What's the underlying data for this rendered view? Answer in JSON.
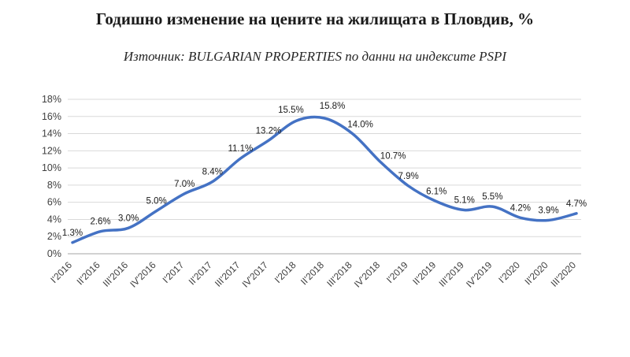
{
  "chart_data": {
    "type": "line",
    "title": "Годишно изменение на цените на жилищата в Пловдив, %",
    "subtitle": "Източник: BULGARIAN PROPERTIES по данни на индексите PSPI",
    "categories": [
      "I'2016",
      "II'2016",
      "III'2016",
      "IV'2016",
      "I'2017",
      "II'2017",
      "III'2017",
      "IV'2017",
      "I'2018",
      "II'2018",
      "III'2018",
      "IV'2018",
      "I'2019",
      "II'2019",
      "III'2019",
      "IV'2019",
      "I'2020",
      "II'2020",
      "III'2020"
    ],
    "values": [
      1.3,
      2.6,
      3.0,
      5.0,
      7.0,
      8.4,
      11.1,
      13.2,
      15.5,
      15.8,
      14.0,
      10.7,
      7.9,
      6.1,
      5.1,
      5.5,
      4.2,
      3.9,
      4.7
    ],
    "data_labels": [
      "1.3%",
      "2.6%",
      "3.0%",
      "5.0%",
      "7.0%",
      "8.4%",
      "11.1%",
      "13.2%",
      "15.5%",
      "15.8%",
      "14.0%",
      "10.7%",
      "7.9%",
      "6.1%",
      "5.1%",
      "5.5%",
      "4.2%",
      "3.9%",
      "4.7%"
    ],
    "xlabel": "",
    "ylabel": "",
    "ylim": [
      0,
      18
    ],
    "ytick_step": 2,
    "ytick_labels": [
      "0%",
      "2%",
      "4%",
      "6%",
      "8%",
      "10%",
      "12%",
      "14%",
      "16%",
      "18%"
    ],
    "line_color": "#4472C4",
    "grid": true,
    "legend": "none",
    "smooth_line": true
  }
}
